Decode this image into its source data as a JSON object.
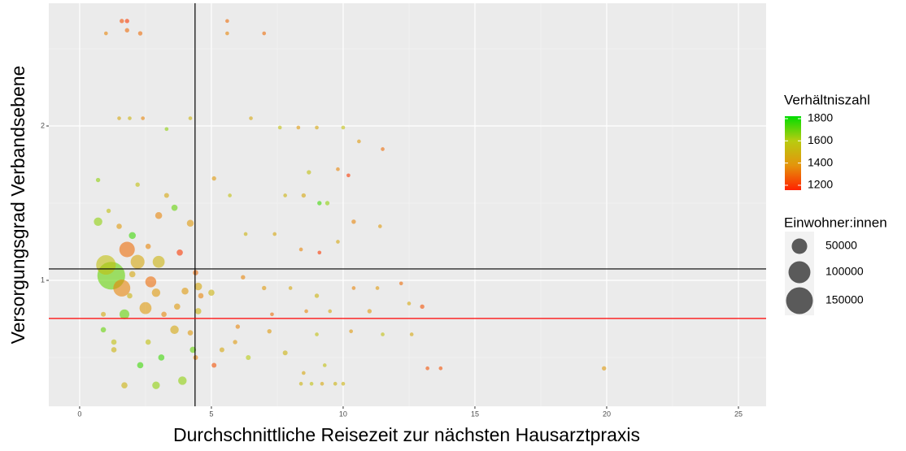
{
  "chart_data": {
    "type": "scatter",
    "xlabel": "Durchschnittliche Reisezeit zur nächsten Hausarztpraxis",
    "ylabel": "Versorgungsgrad Verbandsebene",
    "xlim": [
      -1.17,
      26.05
    ],
    "ylim": [
      0.184,
      2.795
    ],
    "xticks": [
      0,
      5,
      10,
      15,
      20,
      25
    ],
    "yticks": [
      1,
      2
    ],
    "xminor": [
      2.5,
      7.5,
      12.5,
      17.5,
      22.5
    ],
    "yminor": [
      0.5,
      1.5,
      2.5
    ],
    "grid": true,
    "vlines": [
      {
        "value": 4.38,
        "color": "#000000"
      }
    ],
    "hlines": [
      {
        "value": 1.074,
        "color": "#000000"
      },
      {
        "value": 0.753,
        "color": "#ff0000"
      }
    ],
    "colorlim": [
      1156,
      1822
    ],
    "colors": [
      "#ff2200",
      "#e4940c",
      "#b8cc10",
      "#00dd00"
    ],
    "opacity": 0.6,
    "color_legend": {
      "title": "Verhältniszahl",
      "ticks": [
        1200,
        1400,
        1600,
        1800
      ]
    },
    "size_legend": {
      "title": "Einwohner:innen",
      "values": [
        50000,
        100000,
        150000
      ]
    },
    "series": [
      {
        "x": [
          1.2,
          1.0,
          1.6,
          1.8,
          2.2,
          3.0,
          2.5,
          0.7,
          1.7,
          3.6,
          3.9,
          2.0,
          2.7,
          2.9,
          3.6,
          3.0,
          4.2,
          3.8,
          4.3,
          3.1,
          2.9,
          1.7,
          2.3,
          4.0,
          4.5,
          4.5,
          5.0,
          1.0,
          1.6,
          1.8,
          1.8,
          2.3,
          5.6,
          5.6,
          7.0,
          1.5,
          1.9,
          2.4,
          3.3,
          4.2,
          6.5,
          7.6,
          8.3,
          9.0,
          10.0,
          10.6,
          11.5,
          9.8,
          10.2,
          8.7,
          8.5,
          7.8,
          9.4,
          9.1,
          10.4,
          11.4,
          6.3,
          7.4,
          8.4,
          9.1,
          9.8,
          5.1,
          5.7,
          3.3,
          2.2,
          0.7,
          1.1,
          6.2,
          7.0,
          8.0,
          9.0,
          10.4,
          11.3,
          12.2,
          12.5,
          13.0,
          11.0,
          9.5,
          8.6,
          7.3,
          6.0,
          7.2,
          9.0,
          10.3,
          11.5,
          12.6,
          5.9,
          5.4,
          6.4,
          7.8,
          9.3,
          8.5,
          8.4,
          8.8,
          9.2,
          9.7,
          10.0,
          13.2,
          13.7,
          19.9,
          5.1,
          4.4,
          0.9,
          1.3,
          1.3,
          2.6,
          1.9,
          0.9,
          3.2,
          3.7,
          2.0,
          1.5,
          2.6,
          4.4,
          4.6,
          4.2
        ],
        "y": [
          1.03,
          1.1,
          0.95,
          1.2,
          1.12,
          1.12,
          0.82,
          1.38,
          0.78,
          0.68,
          0.35,
          1.29,
          0.99,
          0.92,
          1.47,
          1.42,
          1.37,
          1.18,
          0.55,
          0.5,
          0.32,
          0.32,
          0.45,
          0.93,
          0.8,
          0.96,
          0.92,
          2.6,
          2.68,
          2.68,
          2.62,
          2.6,
          2.68,
          2.6,
          2.6,
          2.05,
          2.05,
          2.05,
          1.98,
          2.05,
          2.05,
          1.99,
          1.99,
          1.99,
          1.99,
          1.9,
          1.85,
          1.72,
          1.68,
          1.7,
          1.55,
          1.55,
          1.5,
          1.5,
          1.38,
          1.35,
          1.3,
          1.3,
          1.2,
          1.18,
          1.25,
          1.66,
          1.55,
          1.55,
          1.62,
          1.65,
          1.45,
          1.02,
          0.95,
          0.95,
          0.9,
          0.95,
          0.95,
          0.98,
          0.85,
          0.83,
          0.8,
          0.8,
          0.8,
          0.78,
          0.7,
          0.67,
          0.65,
          0.67,
          0.65,
          0.65,
          0.6,
          0.55,
          0.5,
          0.53,
          0.45,
          0.4,
          0.33,
          0.33,
          0.33,
          0.33,
          0.33,
          0.43,
          0.43,
          0.43,
          0.45,
          0.5,
          0.68,
          0.55,
          0.6,
          0.6,
          0.9,
          0.78,
          0.78,
          0.83,
          1.04,
          1.35,
          1.22,
          1.05,
          0.9,
          0.66
        ],
        "sizes": [
          160000,
          80000,
          60000,
          50000,
          40000,
          30000,
          30000,
          15000,
          20000,
          15000,
          15000,
          10000,
          25000,
          15000,
          8000,
          10000,
          10000,
          8000,
          8000,
          8000,
          12000,
          8000,
          8000,
          10000,
          8000,
          12000,
          8000,
          3000,
          4000,
          4000,
          4000,
          4000,
          3000,
          3000,
          3000,
          3000,
          3000,
          3000,
          3000,
          3000,
          3000,
          3000,
          3000,
          3000,
          3000,
          3000,
          3000,
          3000,
          3000,
          4000,
          4000,
          3000,
          4000,
          4000,
          4000,
          3000,
          3000,
          3000,
          3000,
          3000,
          3000,
          4000,
          3000,
          5000,
          4000,
          4000,
          4000,
          4000,
          4000,
          3000,
          4000,
          3000,
          3000,
          3000,
          3000,
          4000,
          4000,
          3000,
          3000,
          3000,
          4000,
          4000,
          3000,
          3000,
          3000,
          3000,
          4000,
          5000,
          5000,
          5000,
          3000,
          3000,
          3000,
          3000,
          3000,
          3000,
          3000,
          3000,
          3000,
          4000,
          5000,
          5000,
          6000,
          6000,
          6000,
          6000,
          6000,
          5000,
          6000,
          8000,
          8000,
          6000,
          6000,
          6000,
          6000,
          6000
        ],
        "color_values": [
          1700,
          1550,
          1350,
          1300,
          1450,
          1500,
          1400,
          1650,
          1700,
          1450,
          1650,
          1750,
          1300,
          1400,
          1700,
          1350,
          1400,
          1200,
          1700,
          1750,
          1650,
          1500,
          1750,
          1400,
          1500,
          1450,
          1500,
          1350,
          1250,
          1200,
          1300,
          1300,
          1300,
          1350,
          1300,
          1450,
          1500,
          1350,
          1650,
          1500,
          1450,
          1550,
          1400,
          1450,
          1550,
          1400,
          1300,
          1350,
          1200,
          1550,
          1450,
          1500,
          1650,
          1750,
          1350,
          1400,
          1500,
          1450,
          1350,
          1200,
          1450,
          1400,
          1550,
          1450,
          1550,
          1650,
          1550,
          1350,
          1400,
          1450,
          1500,
          1350,
          1400,
          1300,
          1450,
          1250,
          1400,
          1450,
          1350,
          1300,
          1350,
          1400,
          1550,
          1400,
          1550,
          1450,
          1400,
          1450,
          1600,
          1500,
          1550,
          1450,
          1500,
          1550,
          1450,
          1500,
          1500,
          1250,
          1250,
          1400,
          1250,
          1350,
          1700,
          1500,
          1550,
          1550,
          1500,
          1450,
          1350,
          1400,
          1450,
          1400,
          1350,
          1300,
          1350,
          1400
        ]
      }
    ]
  }
}
